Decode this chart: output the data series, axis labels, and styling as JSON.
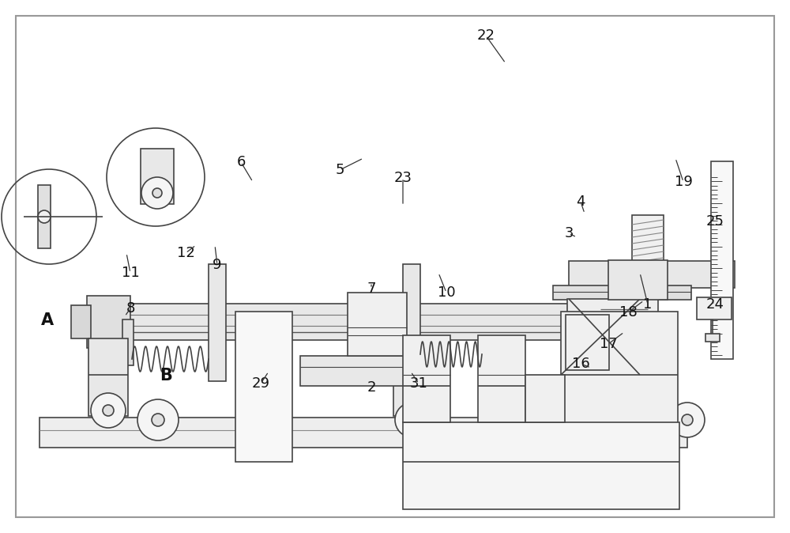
{
  "bg_color": "#ffffff",
  "lc": "#444444",
  "lw": 1.2,
  "fig_w": 10.0,
  "fig_h": 6.74,
  "labels": [
    [
      "1",
      820,
      385
    ],
    [
      "2",
      470,
      490
    ],
    [
      "3",
      720,
      295
    ],
    [
      "4",
      735,
      255
    ],
    [
      "5",
      430,
      215
    ],
    [
      "6",
      305,
      205
    ],
    [
      "7",
      470,
      365
    ],
    [
      "8",
      165,
      390
    ],
    [
      "9",
      275,
      335
    ],
    [
      "10",
      565,
      370
    ],
    [
      "11",
      165,
      345
    ],
    [
      "12",
      235,
      320
    ],
    [
      "16",
      735,
      460
    ],
    [
      "17",
      770,
      435
    ],
    [
      "18",
      795,
      395
    ],
    [
      "19",
      865,
      230
    ],
    [
      "22",
      615,
      45
    ],
    [
      "23",
      510,
      225
    ],
    [
      "24",
      905,
      385
    ],
    [
      "25",
      905,
      280
    ],
    [
      "29",
      330,
      485
    ],
    [
      "31",
      530,
      485
    ],
    [
      "A",
      60,
      405
    ],
    [
      "B",
      210,
      475
    ]
  ]
}
